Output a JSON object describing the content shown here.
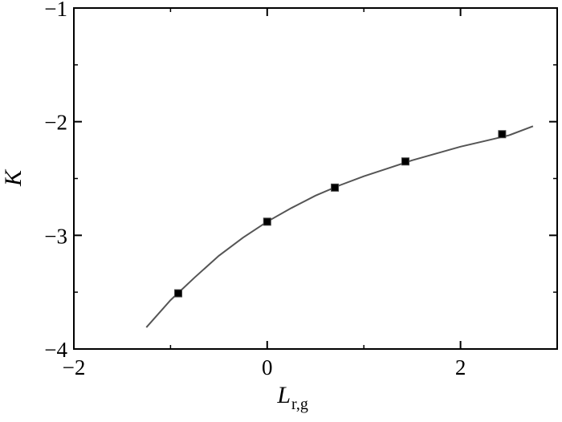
{
  "chart_data": {
    "type": "scatter",
    "title": "",
    "xlabel": "L",
    "xlabel_subscript": "r,g",
    "ylabel": "K",
    "xlim": [
      -2,
      3
    ],
    "ylim": [
      -4,
      -1
    ],
    "x_ticks": [
      -2,
      0,
      2
    ],
    "y_ticks": [
      -4,
      -3,
      -2,
      -1
    ],
    "x_tick_labels": [
      "−2",
      "0",
      "2"
    ],
    "y_tick_labels": [
      "−4",
      "−3",
      "−2",
      "−1"
    ],
    "grid": false,
    "legend": "none",
    "series": [
      {
        "kind": "points",
        "marker": "square",
        "color": "#000000",
        "x": [
          -0.92,
          0.0,
          0.7,
          1.43,
          2.43
        ],
        "y": [
          -3.51,
          -2.88,
          -2.58,
          -2.35,
          -2.11
        ]
      },
      {
        "kind": "fit-curve",
        "color": "#555555",
        "x": [
          -1.25,
          -1.0,
          -0.75,
          -0.5,
          -0.25,
          0.0,
          0.25,
          0.5,
          0.75,
          1.0,
          1.25,
          1.5,
          1.75,
          2.0,
          2.25,
          2.5,
          2.75
        ],
        "y": [
          -3.81,
          -3.57,
          -3.37,
          -3.18,
          -3.02,
          -2.88,
          -2.76,
          -2.65,
          -2.56,
          -2.48,
          -2.41,
          -2.34,
          -2.28,
          -2.22,
          -2.17,
          -2.12,
          -2.04
        ]
      }
    ]
  }
}
